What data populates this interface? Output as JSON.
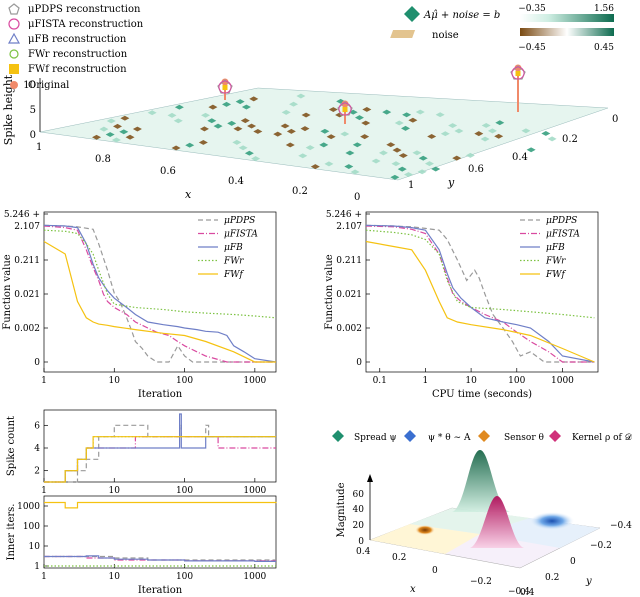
{
  "colors": {
    "pdps": "#9a9a9a",
    "fista": "#d94aa0",
    "fb": "#6f7fc7",
    "fwr": "#7cc242",
    "fwf": "#f5c211",
    "original": "#f08a6a",
    "teal": "#1f8f6e",
    "brown": "#8a5a1f"
  },
  "top": {
    "legend": [
      {
        "name": "μPDPS reconstruction",
        "marker": "pentagon"
      },
      {
        "name": "μFISTA reconstruction",
        "marker": "circle"
      },
      {
        "name": "μFB reconstruction",
        "marker": "triangle"
      },
      {
        "name": "FWr reconstruction",
        "marker": "circle"
      },
      {
        "name": "FWf reconstruction",
        "marker": "square"
      },
      {
        "name": "Original",
        "marker": "dot"
      }
    ],
    "colorbar_label": "Aμ̂ + noise = b",
    "noise_label": "noise",
    "cb1_min": "−0.35",
    "cb1_max": "1.56",
    "cb2_min": "−0.45",
    "cb2_max": "0.45",
    "zlabel": "Spike height",
    "xlabel": "x",
    "ylabel": "y"
  },
  "chart_data": [
    {
      "type": "line",
      "title": "",
      "xlabel": "Iteration",
      "ylabel": "Function value",
      "xscale": "log",
      "xlim": [
        1,
        2000
      ],
      "yticks": [
        "0",
        "0.002",
        "0.021",
        "0.211",
        "2.107",
        "5.246 +"
      ],
      "xticks": [
        "1",
        "10",
        "100",
        "1000"
      ],
      "legend_position": "top-right",
      "series": [
        {
          "name": "μPDPS",
          "style": "dashed",
          "x": [
            1,
            2,
            3,
            5,
            6,
            8,
            10,
            12,
            15,
            18,
            20,
            25,
            30,
            40,
            60,
            80,
            100,
            130,
            200,
            500,
            1000,
            2000
          ],
          "y": [
            2.1,
            2.0,
            1.9,
            1.6,
            0.6,
            0.1,
            0.021,
            0.012,
            0.004,
            0.0015,
            0.0008,
            0.0005,
            0.0003,
            0.0002,
            0.0002,
            0.0006,
            0.0003,
            0.0002,
            0.0002,
            0.00015,
            0.0001,
            0.0001
          ]
        },
        {
          "name": "μFISTA",
          "style": "dashdot",
          "x": [
            1,
            2,
            3,
            4,
            5,
            6,
            7,
            8,
            10,
            15,
            20,
            30,
            40,
            60,
            80,
            100,
            150,
            200,
            400,
            1000,
            2000
          ],
          "y": [
            2.0,
            1.8,
            1.5,
            0.4,
            0.12,
            0.05,
            0.02,
            0.012,
            0.008,
            0.005,
            0.003,
            0.002,
            0.0015,
            0.0012,
            0.0008,
            0.0006,
            0.0004,
            0.0003,
            0.0002,
            0.00012,
            0.0001
          ]
        },
        {
          "name": "μFB",
          "style": "solid",
          "x": [
            1,
            2,
            3,
            4,
            5,
            6,
            8,
            10,
            15,
            20,
            30,
            50,
            80,
            100,
            150,
            200,
            300,
            400,
            500,
            700,
            1000,
            2000
          ],
          "y": [
            2.1,
            2.0,
            1.8,
            0.6,
            0.15,
            0.06,
            0.025,
            0.015,
            0.008,
            0.005,
            0.003,
            0.0025,
            0.0022,
            0.002,
            0.0018,
            0.0016,
            0.0015,
            0.0012,
            0.0006,
            0.0004,
            0.00025,
            0.00015
          ]
        },
        {
          "name": "FWr",
          "style": "dotted",
          "x": [
            1,
            2,
            3,
            4,
            5,
            6,
            8,
            10,
            20,
            50,
            100,
            200,
            500,
            1000,
            2000
          ],
          "y": [
            1.5,
            1.4,
            1.2,
            0.6,
            0.3,
            0.1,
            0.02,
            0.01,
            0.008,
            0.007,
            0.006,
            0.0055,
            0.005,
            0.0045,
            0.004
          ]
        },
        {
          "name": "FWf",
          "style": "solid",
          "x": [
            1,
            2,
            3,
            4,
            5,
            6,
            8,
            10,
            20,
            50,
            100,
            200,
            500,
            1000,
            2000
          ],
          "y": [
            0.7,
            0.3,
            0.012,
            0.004,
            0.003,
            0.0026,
            0.0024,
            0.0022,
            0.0018,
            0.0014,
            0.0012,
            0.0008,
            0.0004,
            0.0002,
            0.00015
          ]
        }
      ]
    },
    {
      "type": "line",
      "title": "",
      "xlabel": "CPU time (seconds)",
      "ylabel": "Function value",
      "xscale": "log",
      "xlim": [
        0.05,
        6000
      ],
      "yticks": [
        "0",
        "0.002",
        "0.021",
        "0.211",
        "2.107",
        "5.246 +"
      ],
      "xticks": [
        "0.1",
        "1",
        "10",
        "100",
        "1000"
      ],
      "legend_position": "top-right",
      "series": [
        {
          "name": "μPDPS",
          "style": "dashed",
          "x": [
            0.05,
            0.2,
            0.5,
            1,
            2,
            3,
            5,
            8,
            12,
            15,
            20,
            30,
            50,
            80,
            120,
            200,
            400,
            1000,
            2000,
            5000
          ],
          "y": [
            2.1,
            2.0,
            1.9,
            1.7,
            1.5,
            0.8,
            0.2,
            0.05,
            0.1,
            0.06,
            0.02,
            0.005,
            0.002,
            0.0008,
            0.0003,
            0.0004,
            0.0002,
            0.00015,
            0.0001,
            0.0001
          ]
        },
        {
          "name": "μFISTA",
          "style": "dashdot",
          "x": [
            0.05,
            0.2,
            0.5,
            1,
            2,
            3,
            4,
            6,
            10,
            20,
            50,
            100,
            200,
            500,
            1000,
            5000
          ],
          "y": [
            2.0,
            1.9,
            1.6,
            1.2,
            0.3,
            0.06,
            0.02,
            0.012,
            0.008,
            0.005,
            0.003,
            0.0015,
            0.0008,
            0.0004,
            0.0002,
            0.0001
          ]
        },
        {
          "name": "μFB",
          "style": "solid",
          "x": [
            0.05,
            0.2,
            0.5,
            1,
            2,
            3,
            4,
            6,
            10,
            20,
            50,
            100,
            200,
            500,
            1000,
            5000
          ],
          "y": [
            2.1,
            2.0,
            1.8,
            1.5,
            0.4,
            0.08,
            0.03,
            0.015,
            0.008,
            0.004,
            0.003,
            0.0025,
            0.002,
            0.0008,
            0.0003,
            0.00015
          ]
        },
        {
          "name": "FWr",
          "style": "dotted",
          "x": [
            0.05,
            0.2,
            0.5,
            1,
            2,
            3,
            5,
            10,
            50,
            200,
            1000,
            5000
          ],
          "y": [
            1.5,
            1.3,
            1.1,
            0.8,
            0.3,
            0.05,
            0.012,
            0.008,
            0.007,
            0.006,
            0.005,
            0.004
          ]
        },
        {
          "name": "FWf",
          "style": "solid",
          "x": [
            0.05,
            0.2,
            0.5,
            1,
            2,
            3,
            5,
            10,
            50,
            200,
            1000,
            5000
          ],
          "y": [
            0.7,
            0.5,
            0.4,
            0.1,
            0.012,
            0.004,
            0.003,
            0.0025,
            0.0018,
            0.0012,
            0.0005,
            0.00015
          ]
        }
      ]
    },
    {
      "type": "line",
      "title": "",
      "xlabel": "",
      "ylabel": "Spike count",
      "xscale": "log",
      "xlim": [
        1,
        2000
      ],
      "ylim": [
        1,
        7
      ],
      "yticks": [
        "2",
        "4",
        "6"
      ],
      "xticks": [
        "1",
        "10",
        "100",
        "1000"
      ],
      "series": [
        {
          "name": "μPDPS",
          "style": "dashed",
          "x": [
            1,
            3,
            4,
            6,
            10,
            20,
            30,
            50,
            80,
            85,
            90,
            200,
            220,
            300,
            2000
          ],
          "y": [
            1,
            2,
            3,
            5,
            6,
            6,
            5,
            5,
            5,
            6,
            5,
            6,
            5,
            5,
            5
          ]
        },
        {
          "name": "μFISTA",
          "style": "dashdot",
          "x": [
            1,
            2,
            3,
            4,
            5,
            10,
            20,
            40,
            80,
            90,
            200,
            300,
            2000
          ],
          "y": [
            1,
            2,
            3,
            4,
            4,
            4,
            5,
            5,
            5,
            5,
            5,
            4,
            4
          ]
        },
        {
          "name": "μFB",
          "style": "solid",
          "x": [
            1,
            2,
            3,
            4,
            5,
            10,
            20,
            30,
            80,
            85,
            90,
            200,
            2000
          ],
          "y": [
            1,
            2,
            3,
            4,
            4,
            4,
            4,
            4,
            4,
            7,
            4,
            5,
            5
          ]
        },
        {
          "name": "FWr",
          "style": "dotted",
          "x": [
            1,
            2,
            3,
            4,
            5,
            10,
            100,
            2000
          ],
          "y": [
            1,
            2,
            3,
            4,
            5,
            5,
            5,
            5
          ]
        },
        {
          "name": "FWf",
          "style": "solid",
          "x": [
            1,
            2,
            3,
            4,
            5,
            10,
            100,
            2000
          ],
          "y": [
            1,
            2,
            3,
            4,
            5,
            5,
            5,
            5
          ]
        }
      ]
    },
    {
      "type": "line",
      "title": "",
      "xlabel": "Iteration",
      "ylabel": "Inner iters.",
      "xscale": "log",
      "yscale": "log",
      "xlim": [
        1,
        2000
      ],
      "yticks": [
        "1",
        "10",
        "100",
        "1000"
      ],
      "xticks": [
        "1",
        "10",
        "100",
        "1000"
      ],
      "series": [
        {
          "name": "μPDPS",
          "style": "dashed",
          "x": [
            1,
            3,
            4,
            10,
            30,
            100,
            1000,
            2000
          ],
          "y": [
            3,
            3,
            3,
            2.5,
            2,
            2,
            2,
            2
          ]
        },
        {
          "name": "μFISTA",
          "style": "dashdot",
          "x": [
            1,
            3,
            4,
            10,
            30,
            100,
            1000,
            2000
          ],
          "y": [
            3,
            3,
            2.5,
            2,
            2,
            1.8,
            1.8,
            1.8
          ]
        },
        {
          "name": "μFB",
          "style": "solid",
          "x": [
            1,
            3,
            4,
            6,
            10,
            30,
            100,
            1000,
            2000
          ],
          "y": [
            3,
            3,
            3.2,
            2.5,
            2.2,
            2,
            1.8,
            1.7,
            1.7
          ]
        },
        {
          "name": "FWr",
          "style": "dotted",
          "x": [
            1,
            2000
          ],
          "y": [
            1,
            1
          ]
        },
        {
          "name": "FWf",
          "style": "solid",
          "x": [
            1,
            2,
            3,
            4,
            2000
          ],
          "y": [
            1500,
            800,
            1500,
            1500,
            1600
          ]
        }
      ]
    }
  ],
  "bottom_right": {
    "legend": [
      "Spread ψ",
      "ψ * θ ∼ A",
      "Sensor θ",
      "Kernel ρ of 𝒟"
    ],
    "zlabel": "Magnitude",
    "zticks": [
      "0",
      "20",
      "40",
      "60"
    ],
    "xlabel": "x",
    "ylabel": "y",
    "xticks": [
      "0.4",
      "0.2",
      "0",
      "−0.2",
      "−0.4"
    ],
    "yticks": [
      "−0.4",
      "−0.2",
      "0",
      "0.2",
      "0.4"
    ]
  }
}
